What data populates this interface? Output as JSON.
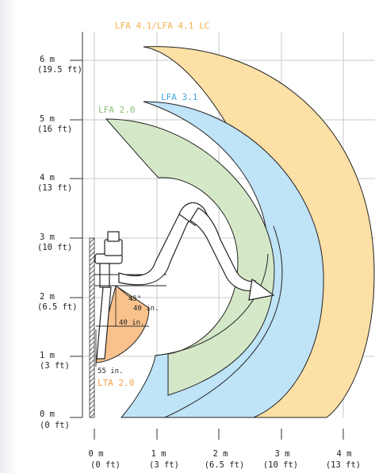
{
  "colors": {
    "lfa41": "#fde0a6",
    "lfa41_text": "#f2b14a",
    "lfa31": "#bfe3f7",
    "lfa31_text": "#3fa7e0",
    "lfa20": "#d4e8c8",
    "lfa20_text": "#8cc07a",
    "lta20": "#f9c28c",
    "lta20_text": "#f2a34a",
    "grid": "#c8c8c8",
    "ink": "#222222"
  },
  "labels": {
    "lfa41": "LFA 4.1/LFA 4.1 LC",
    "lfa31": "LFA 3.1",
    "lfa20": "LFA 2.0",
    "lta20": "LTA 2.0"
  },
  "annotations": {
    "angle": "45°",
    "reach_diag": "40 in.",
    "reach_horiz": "40 in.",
    "drop": "55 in."
  },
  "y_axis": [
    {
      "m": "6 m",
      "ft": "(19.5 ft)"
    },
    {
      "m": "5 m",
      "ft": "(16 ft)"
    },
    {
      "m": "4 m",
      "ft": "(13 ft)"
    },
    {
      "m": "3 m",
      "ft": "(10 ft)"
    },
    {
      "m": "2 m",
      "ft": "(6.5 ft)"
    },
    {
      "m": "1 m",
      "ft": "(3 ft)"
    },
    {
      "m": "0 m",
      "ft": "(0 ft)"
    }
  ],
  "x_axis": [
    {
      "m": "0 m",
      "ft": "(0 ft)"
    },
    {
      "m": "1 m",
      "ft": "(3 ft)"
    },
    {
      "m": "2 m",
      "ft": "(6.5 ft)"
    },
    {
      "m": "3 m",
      "ft": "(10 ft)"
    },
    {
      "m": "4 m",
      "ft": "(13 ft)"
    }
  ]
}
